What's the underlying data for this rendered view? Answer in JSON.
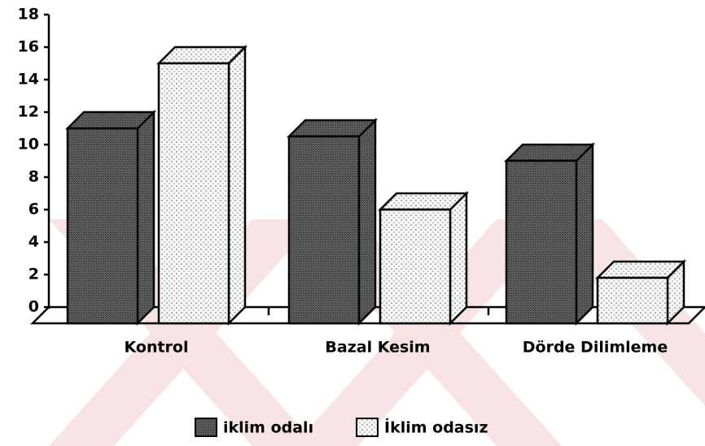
{
  "chart_data": {
    "type": "bar3d",
    "categories": [
      "Kontrol",
      "Bazal Kesim",
      "Dörde Dilimleme"
    ],
    "series": [
      {
        "name": "iklim odalı",
        "color": "#6e6e6e",
        "values": [
          12,
          11.5,
          10
        ]
      },
      {
        "name": "İklim odasız",
        "color": "#f7f7f7",
        "values": [
          16,
          7,
          2.8
        ]
      }
    ],
    "ylim": [
      0,
      18
    ],
    "yticks": [
      0,
      2,
      4,
      6,
      8,
      10,
      12,
      14,
      16,
      18
    ]
  }
}
